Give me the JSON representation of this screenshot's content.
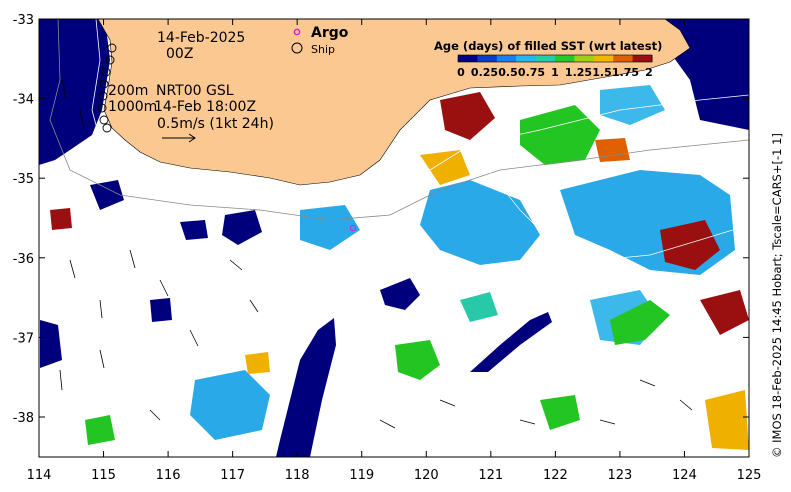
{
  "map": {
    "date_line": "14-Feb-2025",
    "time_line": "00Z",
    "contour_200": "200m",
    "contour_1000": "1000m",
    "product": "NRT00 GSL",
    "obs_time": "14-Feb 18:00Z",
    "vector_scale": "0.5m/s (1kt 24h)",
    "legend": {
      "argo": "Argo",
      "ship": "Ship",
      "argo_color": "#e020e0"
    },
    "colorbar": {
      "title": "Age (days) of filled SST (wrt latest)",
      "ticks": [
        "0",
        "0.25",
        "0.5",
        "0.75",
        "1",
        "1.25",
        "1.5",
        "1.75",
        "2"
      ],
      "colors": [
        "#000080",
        "#0a3fc4",
        "#1f7fe8",
        "#2ab4ec",
        "#27c9a8",
        "#28c828",
        "#a0d010",
        "#f0b800",
        "#e06000",
        "#9a1010"
      ]
    },
    "x_ticks": [
      "114",
      "115",
      "116",
      "117",
      "118",
      "119",
      "120",
      "121",
      "122",
      "123",
      "124",
      "125"
    ],
    "y_ticks": [
      "-33",
      "-34",
      "-35",
      "-36",
      "-37",
      "-38"
    ],
    "credit": "© IMOS 18-Feb-2025 14:45 Hobart; Tscale=CARS+[-1 1]",
    "land_color": "#fbc892",
    "ocean_color": "#ffffff"
  }
}
